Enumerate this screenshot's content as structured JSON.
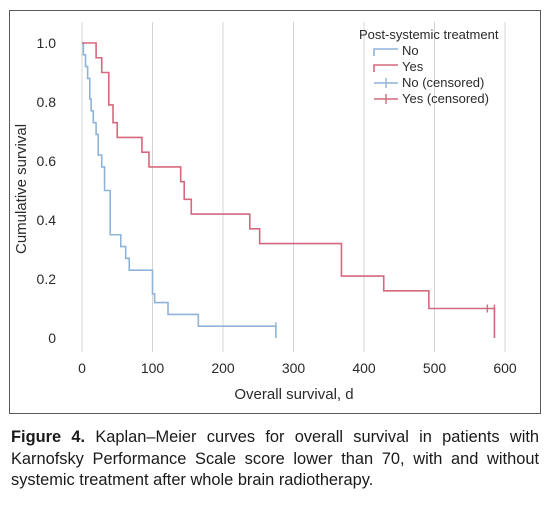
{
  "chart_data": {
    "type": "line",
    "subtype": "kaplan-meier step",
    "xlabel": "Overall survival, d",
    "ylabel": "Cumulative survival",
    "xlim": [
      0,
      600
    ],
    "ylim": [
      0,
      1.0
    ],
    "xticks": [
      "0",
      "100",
      "200",
      "300",
      "400",
      "500",
      "600"
    ],
    "yticks": [
      "0",
      "0.2",
      "0.4",
      "0.6",
      "0.8",
      "1.0"
    ],
    "grid": "vertical",
    "legend": {
      "title": "Post-systemic treatment",
      "placement": "top-right",
      "entries": [
        {
          "label": "No",
          "color": "#8fb4d8",
          "marker": "line"
        },
        {
          "label": "Yes",
          "color": "#d4687d",
          "marker": "line"
        },
        {
          "label": "No (censored)",
          "color": "#8fb4d8",
          "marker": "plus"
        },
        {
          "label": "Yes (censored)",
          "color": "#d4687d",
          "marker": "plus"
        }
      ]
    },
    "series": [
      {
        "name": "No",
        "color": "#8fb4d8",
        "x": [
          0,
          2,
          5,
          8,
          11,
          13,
          16,
          20,
          23,
          28,
          32,
          40,
          45,
          55,
          62,
          67,
          77,
          100,
          103,
          122,
          135,
          165,
          275
        ],
        "y": [
          1.0,
          0.96,
          0.92,
          0.88,
          0.81,
          0.77,
          0.73,
          0.69,
          0.62,
          0.58,
          0.5,
          0.35,
          0.35,
          0.31,
          0.27,
          0.23,
          0.23,
          0.15,
          0.12,
          0.08,
          0.08,
          0.04,
          0.0
        ],
        "censored_x": [
          275
        ]
      },
      {
        "name": "Yes",
        "color": "#d4687d",
        "x": [
          0,
          20,
          28,
          38,
          44,
          50,
          60,
          85,
          95,
          100,
          140,
          145,
          155,
          238,
          252,
          368,
          428,
          492,
          575,
          585
        ],
        "y": [
          1.0,
          0.95,
          0.9,
          0.79,
          0.73,
          0.68,
          0.68,
          0.63,
          0.58,
          0.58,
          0.53,
          0.47,
          0.42,
          0.37,
          0.32,
          0.21,
          0.16,
          0.1,
          0.1,
          0.0
        ],
        "censored_x": [
          575,
          585
        ]
      }
    ]
  },
  "caption": {
    "label": "Figure 4.",
    "text": "Kaplan–Meier curves for overall survival in patients with Karnofsky Performance Scale score lower than 70, with and without systemic treatment after whole brain radiotherapy."
  }
}
